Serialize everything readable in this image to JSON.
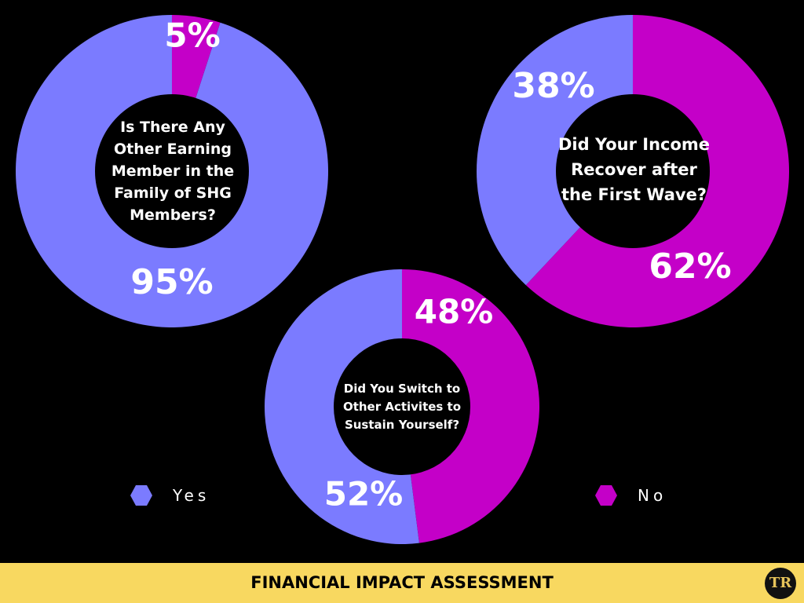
{
  "colors": {
    "yes": "#7b7bff",
    "no": "#c400c8",
    "background": "#000000",
    "footer": "#f8d860"
  },
  "chart_data": [
    {
      "type": "pie",
      "title": "Is There Any Other Earning Member in the Family of SHG Members?",
      "categories": [
        "Yes",
        "No"
      ],
      "values": [
        95,
        5
      ],
      "labels": [
        "95%",
        "5%"
      ]
    },
    {
      "type": "pie",
      "title": "Did Your Income Recover after the First Wave?",
      "categories": [
        "Yes",
        "No"
      ],
      "values": [
        38,
        62
      ],
      "labels": [
        "38%",
        "62%"
      ]
    },
    {
      "type": "pie",
      "title": "Did You Switch to Other Activites to Sustain Yourself?",
      "categories": [
        "Yes",
        "No"
      ],
      "values": [
        52,
        48
      ],
      "labels": [
        "52%",
        "48%"
      ]
    }
  ],
  "legend": {
    "yes": "Yes",
    "no": "No"
  },
  "footer": {
    "title": "FINANCIAL IMPACT ASSESSMENT",
    "logo_text": "TR"
  }
}
